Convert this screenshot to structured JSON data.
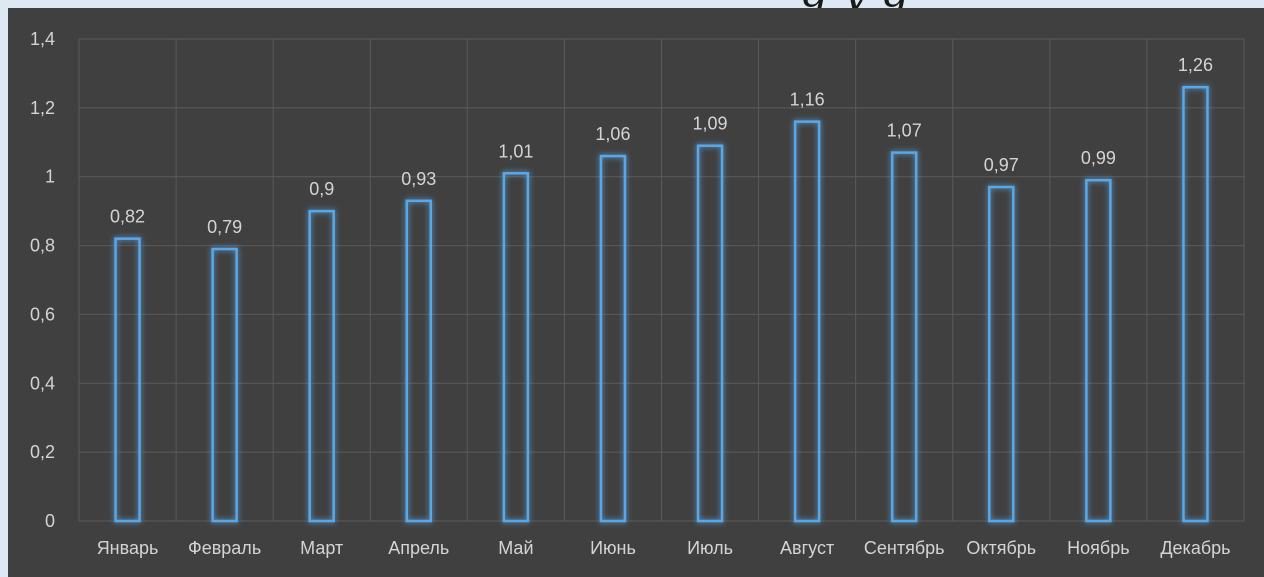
{
  "chart_data": {
    "type": "bar",
    "title": "",
    "xlabel": "",
    "ylabel": "",
    "categories": [
      "Январь",
      "Февраль",
      "Март",
      "Апрель",
      "Май",
      "Июнь",
      "Июль",
      "Август",
      "Сентябрь",
      "Октябрь",
      "Ноябрь",
      "Декабрь"
    ],
    "values": [
      0.82,
      0.79,
      0.9,
      0.93,
      1.01,
      1.06,
      1.09,
      1.16,
      1.07,
      0.97,
      0.99,
      1.26
    ],
    "value_labels": [
      "0,82",
      "0,79",
      "0,9",
      "0,93",
      "1,01",
      "1,06",
      "1,09",
      "1,16",
      "1,07",
      "0,97",
      "0,99",
      "1,26"
    ],
    "ylim": [
      0,
      1.4
    ],
    "yticks": [
      0,
      0.2,
      0.4,
      0.6,
      0.8,
      1,
      1.2,
      1.4
    ],
    "ytick_labels": [
      "0",
      "0,2",
      "0,4",
      "0,6",
      "0,8",
      "1",
      "1,2",
      "1,4"
    ],
    "grid": true,
    "legend": "none",
    "colors": {
      "background": "#404040",
      "bar_outline": "#5aa7e8",
      "grid": "#5a5a5a",
      "text": "#d4d4d4",
      "page": "#dde8f3"
    }
  }
}
